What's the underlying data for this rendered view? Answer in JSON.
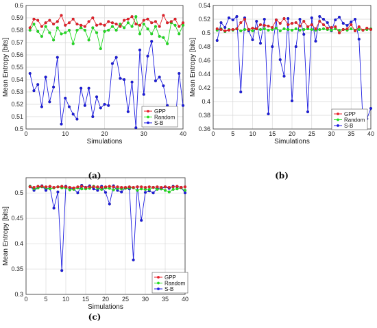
{
  "panel_labels": [
    "(a)",
    "(b)",
    "(c)"
  ],
  "chart_data": [
    {
      "type": "line",
      "xlabel": "Simulations",
      "ylabel": "Mean Entropy [bits]",
      "xlim": [
        0,
        40
      ],
      "ylim": [
        0.5,
        0.6
      ],
      "xticks": [
        0,
        10,
        20,
        30,
        40
      ],
      "yticks": [
        0.5,
        0.51,
        0.52,
        0.53,
        0.54,
        0.55,
        0.56,
        0.57,
        0.58,
        0.59,
        0.6
      ],
      "ytick_labels": [
        "0.5",
        "0.51",
        "0.52",
        "0.53",
        "0.54",
        "0.55",
        "0.56",
        "0.57",
        "0.58",
        "0.59",
        "0.6"
      ],
      "grid": true,
      "legend_position": "bottom-right",
      "x": [
        1,
        2,
        3,
        4,
        5,
        6,
        7,
        8,
        9,
        10,
        11,
        12,
        13,
        14,
        15,
        16,
        17,
        18,
        19,
        20,
        21,
        22,
        23,
        24,
        25,
        26,
        27,
        28,
        29,
        30,
        31,
        32,
        33,
        34,
        35,
        36,
        37,
        38,
        39,
        40
      ],
      "series": [
        {
          "name": "GPP",
          "color": "#e8202a",
          "values": [
            0.582,
            0.589,
            0.588,
            0.583,
            0.586,
            0.588,
            0.585,
            0.587,
            0.592,
            0.584,
            0.586,
            0.589,
            0.585,
            0.584,
            0.583,
            0.587,
            0.59,
            0.584,
            0.585,
            0.584,
            0.587,
            0.586,
            0.585,
            0.583,
            0.588,
            0.589,
            0.591,
            0.585,
            0.584,
            0.588,
            0.589,
            0.586,
            0.587,
            0.583,
            0.592,
            0.586,
            0.587,
            0.589,
            0.583,
            0.586
          ]
        },
        {
          "name": "Random",
          "color": "#22dd22",
          "values": [
            0.58,
            0.585,
            0.579,
            0.575,
            0.583,
            0.578,
            0.572,
            0.582,
            0.577,
            0.578,
            0.58,
            0.569,
            0.58,
            0.582,
            0.58,
            0.572,
            0.582,
            0.578,
            0.565,
            0.579,
            0.58,
            0.583,
            0.58,
            0.585,
            0.582,
            0.586,
            0.583,
            0.591,
            0.577,
            0.585,
            0.581,
            0.577,
            0.583,
            0.575,
            0.574,
            0.569,
            0.586,
            0.584,
            0.577,
            0.584
          ]
        },
        {
          "name": "S-B",
          "color": "#1c1ce0",
          "values": [
            0.545,
            0.531,
            0.536,
            0.518,
            0.542,
            0.522,
            0.534,
            0.558,
            0.504,
            0.525,
            0.518,
            0.512,
            0.508,
            0.533,
            0.519,
            0.533,
            0.51,
            0.526,
            0.517,
            0.52,
            0.519,
            0.553,
            0.558,
            0.541,
            0.54,
            0.514,
            0.538,
            0.501,
            0.564,
            0.528,
            0.559,
            0.571,
            0.539,
            0.542,
            0.535,
            0.519,
            0.508,
            0.503,
            0.545,
            0.519
          ]
        }
      ]
    },
    {
      "type": "line",
      "xlabel": "Simulations",
      "ylabel": "Mean Entropy [bits]",
      "xlim": [
        0,
        40
      ],
      "ylim": [
        0.36,
        0.54
      ],
      "xticks": [
        0,
        5,
        10,
        15,
        20,
        25,
        30,
        35,
        40
      ],
      "yticks": [
        0.36,
        0.38,
        0.4,
        0.42,
        0.44,
        0.46,
        0.48,
        0.5,
        0.52,
        0.54
      ],
      "ytick_labels": [
        "0.36",
        "0.38",
        "0.4",
        "0.42",
        "0.44",
        "0.46",
        "0.48",
        "0.5",
        "0.52",
        "0.54"
      ],
      "grid": true,
      "legend_position": "bottom-right",
      "x": [
        1,
        2,
        3,
        4,
        5,
        6,
        7,
        8,
        9,
        10,
        11,
        12,
        13,
        14,
        15,
        16,
        17,
        18,
        19,
        20,
        21,
        22,
        23,
        24,
        25,
        26,
        27,
        28,
        29,
        30,
        31,
        32,
        33,
        34,
        35,
        36,
        37,
        38,
        39,
        40
      ],
      "series": [
        {
          "name": "GPP",
          "color": "#e8202a",
          "values": [
            0.506,
            0.505,
            0.503,
            0.504,
            0.505,
            0.506,
            0.515,
            0.52,
            0.505,
            0.507,
            0.506,
            0.512,
            0.511,
            0.51,
            0.508,
            0.519,
            0.514,
            0.521,
            0.512,
            0.514,
            0.515,
            0.51,
            0.517,
            0.509,
            0.512,
            0.506,
            0.517,
            0.512,
            0.507,
            0.508,
            0.509,
            0.5,
            0.505,
            0.506,
            0.512,
            0.503,
            0.509,
            0.504,
            0.507,
            0.505
          ]
        },
        {
          "name": "Random",
          "color": "#22dd22",
          "values": [
            0.504,
            0.506,
            0.502,
            0.505,
            0.504,
            0.506,
            0.503,
            0.505,
            0.505,
            0.503,
            0.506,
            0.505,
            0.506,
            0.504,
            0.505,
            0.507,
            0.503,
            0.506,
            0.505,
            0.504,
            0.506,
            0.504,
            0.505,
            0.506,
            0.505,
            0.504,
            0.505,
            0.506,
            0.505,
            0.504,
            0.506,
            0.504,
            0.505,
            0.504,
            0.506,
            0.504,
            0.505,
            0.504,
            0.505,
            0.506
          ]
        },
        {
          "name": "S-B",
          "color": "#1c1ce0",
          "values": [
            0.489,
            0.515,
            0.508,
            0.522,
            0.519,
            0.524,
            0.414,
            0.522,
            0.503,
            0.49,
            0.517,
            0.485,
            0.52,
            0.382,
            0.48,
            0.519,
            0.461,
            0.437,
            0.521,
            0.401,
            0.48,
            0.52,
            0.498,
            0.385,
            0.522,
            0.488,
            0.524,
            0.52,
            0.515,
            0.503,
            0.519,
            0.523,
            0.514,
            0.511,
            0.516,
            0.52,
            0.491,
            0.369,
            0.375,
            0.39
          ]
        }
      ]
    },
    {
      "type": "line",
      "xlabel": "Simulations",
      "ylabel": "Mean Entropy [bits]",
      "xlim": [
        0,
        40
      ],
      "ylim": [
        0.3,
        0.53
      ],
      "xticks": [
        0,
        5,
        10,
        15,
        20,
        25,
        30,
        35,
        40
      ],
      "yticks": [
        0.3,
        0.35,
        0.4,
        0.45,
        0.5
      ],
      "ytick_labels": [
        "0.3",
        "0.35",
        "0.4",
        "0.45",
        "0.5"
      ],
      "grid": true,
      "legend_position": "bottom-right",
      "x": [
        1,
        2,
        3,
        4,
        5,
        6,
        7,
        8,
        9,
        10,
        11,
        12,
        13,
        14,
        15,
        16,
        17,
        18,
        19,
        20,
        21,
        22,
        23,
        24,
        25,
        26,
        27,
        28,
        29,
        30,
        31,
        32,
        33,
        34,
        35,
        36,
        37,
        38,
        39,
        40
      ],
      "series": [
        {
          "name": "GPP",
          "color": "#e8202a",
          "values": [
            0.512,
            0.511,
            0.513,
            0.513,
            0.512,
            0.513,
            0.511,
            0.512,
            0.513,
            0.512,
            0.511,
            0.51,
            0.512,
            0.513,
            0.511,
            0.512,
            0.512,
            0.512,
            0.511,
            0.512,
            0.513,
            0.512,
            0.512,
            0.511,
            0.511,
            0.512,
            0.511,
            0.512,
            0.512,
            0.511,
            0.512,
            0.511,
            0.512,
            0.511,
            0.512,
            0.511,
            0.512,
            0.513,
            0.511,
            0.512
          ]
        },
        {
          "name": "Random",
          "color": "#22dd22",
          "values": [
            0.513,
            0.508,
            0.51,
            0.512,
            0.51,
            0.508,
            0.51,
            0.512,
            0.51,
            0.51,
            0.506,
            0.507,
            0.51,
            0.508,
            0.508,
            0.509,
            0.513,
            0.509,
            0.507,
            0.51,
            0.509,
            0.506,
            0.509,
            0.508,
            0.509,
            0.51,
            0.51,
            0.505,
            0.508,
            0.507,
            0.507,
            0.511,
            0.507,
            0.508,
            0.505,
            0.502,
            0.507,
            0.508,
            0.51,
            0.505
          ]
        },
        {
          "name": "S-B",
          "color": "#1c1ce0",
          "values": [
            0.513,
            0.505,
            0.51,
            0.514,
            0.505,
            0.512,
            0.47,
            0.502,
            0.347,
            0.513,
            0.51,
            0.508,
            0.5,
            0.515,
            0.511,
            0.514,
            0.508,
            0.505,
            0.513,
            0.501,
            0.478,
            0.514,
            0.505,
            0.502,
            0.51,
            0.508,
            0.368,
            0.512,
            0.446,
            0.501,
            0.504,
            0.5,
            0.509,
            0.508,
            0.512,
            0.509,
            0.513,
            0.512,
            0.511,
            0.5
          ]
        }
      ]
    }
  ]
}
